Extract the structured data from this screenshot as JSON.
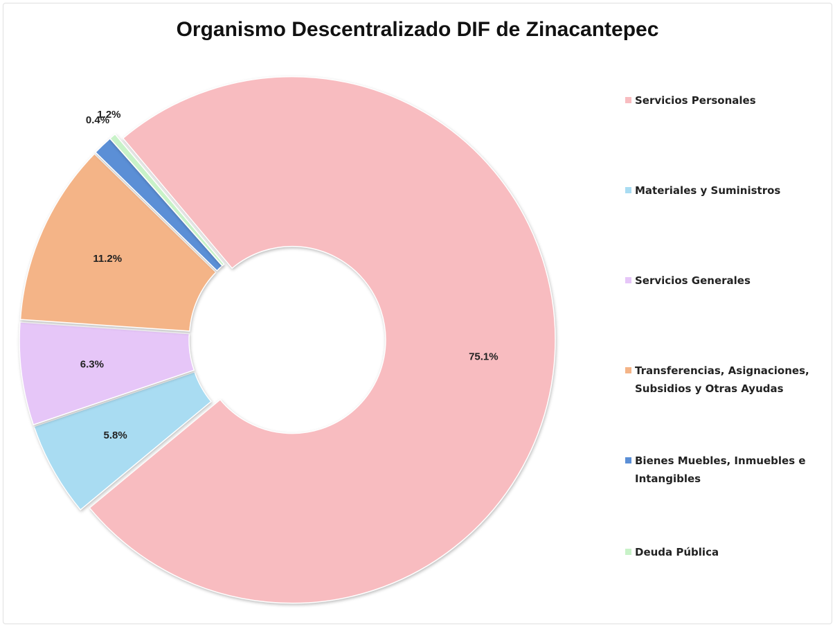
{
  "chart_data": {
    "type": "donut",
    "title": "Organismo Descentralizado DIF de Zinacantepec",
    "categories": [
      "Servicios Personales",
      "Materiales y Suministros",
      "Servicios Generales",
      "Transferencias, Asignaciones, Subsidios y Otras Ayudas",
      "Bienes Muebles, Inmuebles e Intangibles",
      "Deuda Pública"
    ],
    "values": [
      75.1,
      5.8,
      6.3,
      11.2,
      1.2,
      0.4
    ],
    "value_labels": [
      "75.1%",
      "5.8%",
      "6.3%",
      "11.2%",
      "1.2%",
      "0.4%"
    ],
    "colors": [
      "#f8bcc0",
      "#a9dcf2",
      "#e6c6f8",
      "#f4b487",
      "#5b8fd6",
      "#c8f2c8"
    ],
    "legend": "right"
  }
}
